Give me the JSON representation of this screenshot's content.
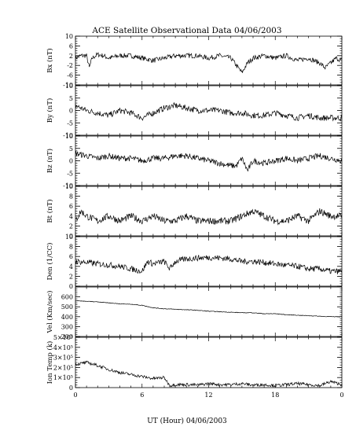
{
  "chart_data": [
    {
      "type": "line",
      "title": "ACE Satellite Observational Data   04/06/2003",
      "ylabel": "Bx (nT)",
      "ylim": [
        -10,
        10
      ],
      "yticks": [
        {
          "v": -10,
          "t": "-10"
        },
        {
          "v": -6,
          "t": "-6"
        },
        {
          "v": -2,
          "t": "-2"
        },
        {
          "v": 2,
          "t": "2"
        },
        {
          "v": 6,
          "t": "6"
        },
        {
          "v": 10,
          "t": "10"
        }
      ],
      "minor_step": 1,
      "x": [
        0,
        0.5,
        1,
        1.25,
        1.5,
        2,
        2.5,
        3,
        4,
        5,
        6,
        7,
        8,
        9,
        10,
        11,
        12,
        13,
        14,
        14.5,
        15,
        15.5,
        16,
        17,
        18,
        19,
        20,
        21,
        22,
        22.5,
        23,
        23.5,
        24
      ],
      "values": [
        1,
        2,
        2,
        -3,
        1,
        2.5,
        2,
        1,
        2,
        2,
        1,
        0,
        1,
        2,
        2,
        2,
        1,
        2,
        1,
        -2,
        -5,
        -1,
        1,
        2,
        1,
        2,
        0,
        1,
        -1,
        -3,
        -1,
        1,
        0
      ],
      "noise": 1.0
    },
    {
      "type": "line",
      "ylabel": "By (nT)",
      "ylim": [
        -10,
        10
      ],
      "yticks": [
        {
          "v": -10,
          "t": "-10"
        },
        {
          "v": -5,
          "t": "-5"
        },
        {
          "v": 0,
          "t": "0"
        },
        {
          "v": 5,
          "t": "5"
        },
        {
          "v": 10,
          "t": "10"
        }
      ],
      "minor_step": 1,
      "x": [
        0,
        1,
        2,
        3,
        4,
        5,
        6,
        7,
        8,
        9,
        10,
        11,
        12,
        13,
        14,
        15,
        16,
        17,
        18,
        19,
        20,
        21,
        22,
        23,
        24
      ],
      "values": [
        2,
        0,
        -1,
        -2,
        0,
        -1,
        -3,
        -1,
        1,
        2,
        1,
        0,
        0,
        0,
        -1,
        -1,
        -2,
        -2,
        -1,
        -2,
        -3,
        -2,
        -3,
        -3,
        -3
      ],
      "noise": 1.2
    },
    {
      "type": "line",
      "ylabel": "Bz (nT)",
      "ylim": [
        -10,
        10
      ],
      "yticks": [
        {
          "v": -10,
          "t": "-10"
        },
        {
          "v": -5,
          "t": "-5"
        },
        {
          "v": 0,
          "t": "0"
        },
        {
          "v": 5,
          "t": "5"
        },
        {
          "v": 10,
          "t": "10"
        }
      ],
      "minor_step": 1,
      "x": [
        0,
        1,
        2,
        3,
        4,
        5,
        6,
        7,
        8,
        9,
        10,
        11,
        12,
        13,
        14,
        14.5,
        15,
        15.5,
        16,
        17,
        18,
        19,
        20,
        21,
        22,
        23,
        24
      ],
      "values": [
        3,
        2,
        1,
        2,
        1,
        1,
        0,
        1,
        1,
        2,
        2,
        1,
        0,
        -1,
        -2,
        -2,
        1,
        -4,
        0,
        -1,
        0,
        1,
        0,
        1,
        2,
        1,
        0
      ],
      "noise": 1.2
    },
    {
      "type": "line",
      "ylabel": "Bt (nT)",
      "ylim": [
        0,
        10
      ],
      "yticks": [
        {
          "v": 0,
          "t": "0"
        },
        {
          "v": 2,
          "t": "2"
        },
        {
          "v": 4,
          "t": "4"
        },
        {
          "v": 6,
          "t": "6"
        },
        {
          "v": 8,
          "t": "8"
        },
        {
          "v": 10,
          "t": "10"
        }
      ],
      "minor_step": 0.5,
      "x": [
        0,
        0.5,
        1,
        2,
        3,
        4,
        5,
        6,
        7,
        8,
        9,
        10,
        11,
        12,
        13,
        14,
        15,
        16,
        17,
        18,
        19,
        20,
        21,
        22,
        23,
        24
      ],
      "values": [
        3,
        5,
        4,
        3,
        4,
        3,
        4,
        3,
        4,
        3,
        3,
        4,
        3,
        3,
        3,
        3,
        4,
        5,
        4,
        3,
        3,
        4,
        3,
        5,
        4,
        4
      ],
      "noise": 0.7
    },
    {
      "type": "line",
      "ylabel": "Den (1/CC)",
      "ylim": [
        0,
        10
      ],
      "yticks": [
        {
          "v": 0,
          "t": "0"
        },
        {
          "v": 2,
          "t": "2"
        },
        {
          "v": 4,
          "t": "4"
        },
        {
          "v": 6,
          "t": "6"
        },
        {
          "v": 8,
          "t": "8"
        },
        {
          "v": 10,
          "t": "10"
        }
      ],
      "minor_step": 0.5,
      "x": [
        0,
        1,
        2,
        3,
        4,
        5,
        6,
        6.5,
        7,
        8,
        8.5,
        9,
        10,
        11,
        12,
        13,
        14,
        15,
        16,
        17,
        18,
        19,
        20,
        21,
        22,
        23,
        24
      ],
      "values": [
        5,
        4.8,
        4.5,
        4.3,
        4,
        3.5,
        3,
        5,
        4.5,
        5,
        3.5,
        5,
        5.5,
        5.7,
        5.8,
        5.7,
        5.5,
        5,
        5,
        4.8,
        4.5,
        4.2,
        4,
        3.5,
        3.5,
        3,
        3
      ],
      "noise": 0.6
    },
    {
      "type": "line",
      "ylabel": "Vel (Km/sec)",
      "ylim": [
        200,
        700
      ],
      "yticks": [
        {
          "v": 200,
          "t": "200"
        },
        {
          "v": 300,
          "t": "300"
        },
        {
          "v": 400,
          "t": "400"
        },
        {
          "v": 500,
          "t": "500"
        },
        {
          "v": 600,
          "t": "600"
        }
      ],
      "minor_step": 20,
      "x": [
        0,
        1,
        2,
        3,
        4,
        5,
        6,
        7,
        8,
        9,
        10,
        11,
        12,
        13,
        14,
        15,
        16,
        17,
        18,
        19,
        20,
        21,
        22,
        23,
        24
      ],
      "values": [
        560,
        555,
        550,
        540,
        530,
        525,
        515,
        490,
        480,
        475,
        470,
        465,
        455,
        450,
        445,
        440,
        440,
        430,
        430,
        420,
        415,
        410,
        405,
        400,
        400
      ],
      "noise": 3
    },
    {
      "type": "line",
      "ylabel": "Ion Temp (k)",
      "ylim": [
        0,
        500000
      ],
      "yticks": [
        {
          "v": 0,
          "t": "0"
        },
        {
          "v": 100000,
          "t": "1×10⁵"
        },
        {
          "v": 200000,
          "t": "2×10⁵"
        },
        {
          "v": 300000,
          "t": "3×10⁵"
        },
        {
          "v": 400000,
          "t": "4×10⁵"
        },
        {
          "v": 500000,
          "t": "5×10⁵"
        }
      ],
      "minor_step": 25000,
      "x": [
        0,
        1,
        2,
        3,
        4,
        5,
        6,
        7,
        8,
        8.5,
        9,
        10,
        11,
        12,
        13,
        14,
        15,
        16,
        17,
        18,
        19,
        20,
        21,
        22,
        23,
        24
      ],
      "values": [
        230000,
        250000,
        220000,
        180000,
        150000,
        130000,
        110000,
        90000,
        100000,
        20000,
        30000,
        30000,
        25000,
        40000,
        30000,
        30000,
        40000,
        25000,
        30000,
        20000,
        30000,
        40000,
        30000,
        20000,
        60000,
        30000
      ],
      "noise": 15000
    }
  ],
  "x_axis": {
    "label": "UT (Hour)   04/06/2003",
    "ticks": [
      {
        "v": 0,
        "t": "0"
      },
      {
        "v": 6,
        "t": "6"
      },
      {
        "v": 12,
        "t": "12"
      },
      {
        "v": 18,
        "t": "18"
      },
      {
        "v": 24,
        "t": "0"
      }
    ],
    "range": [
      0,
      24
    ]
  }
}
